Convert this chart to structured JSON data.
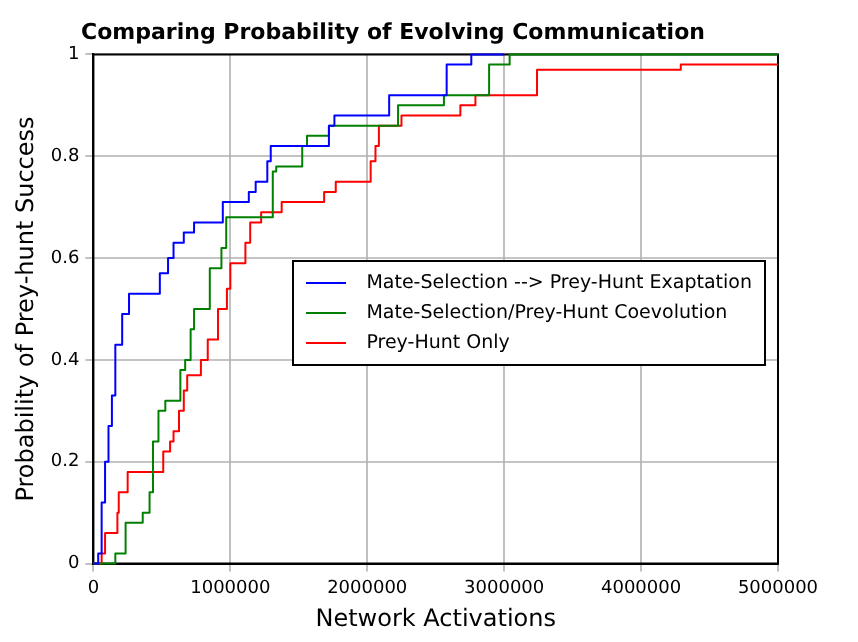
{
  "chart_data": {
    "type": "step",
    "title": "Comparing Probability of Evolving Communication",
    "xlabel": "Network Activations",
    "ylabel": "Probability of Prey-hunt Success",
    "xlim": [
      0,
      5000000
    ],
    "xticks": [
      0,
      1000000,
      2000000,
      3000000,
      4000000,
      5000000
    ],
    "ylim": [
      0,
      1
    ],
    "yticks": [
      0,
      0.2,
      0.4,
      0.6,
      0.8,
      1
    ],
    "grid": true,
    "legend": "center right",
    "line_style": "solid",
    "marker": "none",
    "series": [
      {
        "name": "Mate-Selection --> Prey-Hunt Exaptation",
        "color": "#0000ff",
        "x": [
          0,
          35000,
          60000,
          85000,
          110000,
          135000,
          160000,
          210000,
          260000,
          485000,
          545000,
          585000,
          660000,
          735000,
          945000,
          1135000,
          1185000,
          1270000,
          1295000,
          1720000,
          1760000,
          2160000,
          2580000,
          2760000,
          3000000
        ],
        "values": [
          0,
          0.02,
          0.12,
          0.2,
          0.27,
          0.33,
          0.43,
          0.49,
          0.53,
          0.57,
          0.6,
          0.63,
          0.65,
          0.67,
          0.71,
          0.73,
          0.75,
          0.79,
          0.82,
          0.86,
          0.88,
          0.92,
          0.98,
          1,
          1
        ]
      },
      {
        "name": "Mate-Selection/Prey-Hunt Coevolution",
        "color": "#008000",
        "x": [
          0,
          160000,
          235000,
          360000,
          410000,
          435000,
          475000,
          525000,
          635000,
          670000,
          710000,
          735000,
          850000,
          935000,
          970000,
          1310000,
          1335000,
          1525000,
          1560000,
          1720000,
          2225000,
          2560000,
          2890000,
          3040000,
          5000000
        ],
        "values": [
          0,
          0.02,
          0.08,
          0.1,
          0.14,
          0.24,
          0.3,
          0.32,
          0.38,
          0.4,
          0.46,
          0.5,
          0.58,
          0.62,
          0.68,
          0.77,
          0.78,
          0.82,
          0.84,
          0.86,
          0.9,
          0.92,
          0.98,
          1,
          1
        ]
      },
      {
        "name": "Prey-Hunt Only",
        "color": "#ff0000",
        "x": [
          0,
          60000,
          85000,
          175000,
          185000,
          250000,
          510000,
          560000,
          585000,
          625000,
          660000,
          685000,
          785000,
          835000,
          910000,
          975000,
          1000000,
          1110000,
          1145000,
          1225000,
          1375000,
          1685000,
          1770000,
          2025000,
          2060000,
          2085000,
          2250000,
          2680000,
          2790000,
          3240000,
          4290000,
          5000000
        ],
        "values": [
          0,
          0.02,
          0.06,
          0.1,
          0.14,
          0.18,
          0.22,
          0.24,
          0.26,
          0.3,
          0.34,
          0.37,
          0.4,
          0.44,
          0.5,
          0.54,
          0.59,
          0.63,
          0.67,
          0.69,
          0.71,
          0.73,
          0.75,
          0.79,
          0.82,
          0.86,
          0.88,
          0.9,
          0.92,
          0.97,
          0.98,
          0.98
        ]
      }
    ]
  }
}
